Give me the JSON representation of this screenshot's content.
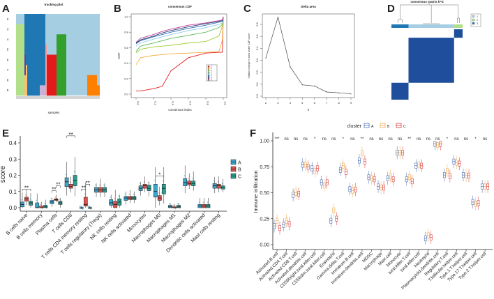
{
  "panel_labels": [
    "A",
    "B",
    "C",
    "D",
    "E",
    "F"
  ],
  "chart_data": [
    {
      "panel": "A",
      "type": "heatmap",
      "title": "tracking plot",
      "xlabel": "samples",
      "ylabel": "",
      "rows": [
        "2",
        "3",
        "4",
        "5",
        "6",
        "7",
        "8",
        "9"
      ],
      "n_samples": 60,
      "background_color": "#a6cee3",
      "segments": [
        {
          "from": 0,
          "to": 6,
          "rows": [
            "3",
            "4",
            "5",
            "6",
            "7",
            "8",
            "9"
          ],
          "color": "#b2df8a"
        },
        {
          "from": 6,
          "to": 21,
          "rows": [
            "2",
            "3",
            "4",
            "5",
            "6",
            "7",
            "8"
          ],
          "color": "#1f78b4"
        },
        {
          "from": 8,
          "to": 17,
          "rows": [
            "9"
          ],
          "color": "#1f78b4"
        },
        {
          "from": 17,
          "to": 21,
          "rows": [
            "9"
          ],
          "color": "#cab2d6"
        },
        {
          "from": 6,
          "to": 8,
          "rows": [
            "7",
            "8",
            "9"
          ],
          "color": "#fdbf6f"
        },
        {
          "from": 6,
          "to": 7,
          "rows": [
            "6",
            "7"
          ],
          "color": "#6a3d9a"
        },
        {
          "from": 21,
          "to": 22,
          "rows": [
            "5",
            "6",
            "7",
            "8",
            "9"
          ],
          "color": "#fb9a99"
        },
        {
          "from": 22,
          "to": 29,
          "rows": [
            "6",
            "7",
            "8",
            "9"
          ],
          "color": "#e31a1c"
        },
        {
          "from": 29,
          "to": 36,
          "rows": [
            "4",
            "5",
            "6",
            "7",
            "8",
            "9"
          ],
          "color": "#33a02c"
        },
        {
          "from": 51,
          "to": 58,
          "rows": [
            "8",
            "9"
          ],
          "color": "#ff7f00"
        },
        {
          "from": 58,
          "to": 60,
          "rows": [
            "9"
          ],
          "color": "#ff7f00"
        }
      ]
    },
    {
      "panel": "B",
      "type": "line",
      "title": "consensus CDF",
      "xlabel": "consensus index",
      "ylabel": "CDF",
      "xlim": [
        0,
        1
      ],
      "ylim": [
        0,
        1
      ],
      "xticks": [
        "0.0",
        "0.2",
        "0.4",
        "0.6",
        "0.8",
        "1.0"
      ],
      "yticks": [
        "0.0",
        "0.2",
        "0.4",
        "0.6",
        "0.8",
        "1.0"
      ],
      "legend_position": "bottom-right",
      "x": [
        0,
        0.05,
        0.2,
        0.3,
        0.4,
        0.6,
        0.8,
        0.95,
        0.99,
        1.0
      ],
      "series": [
        {
          "name": "2",
          "color": "#e41a1c",
          "values": [
            0.04,
            0.04,
            0.07,
            0.1,
            0.3,
            0.47,
            0.53,
            0.54,
            0.54,
            1.0
          ]
        },
        {
          "name": "3",
          "color": "#f5b041",
          "values": [
            0.38,
            0.47,
            0.5,
            0.51,
            0.52,
            0.53,
            0.54,
            0.55,
            0.7,
            1.0
          ]
        },
        {
          "name": "4",
          "color": "#9acd32",
          "values": [
            0.53,
            0.58,
            0.61,
            0.62,
            0.63,
            0.66,
            0.68,
            0.75,
            0.88,
            1.0
          ]
        },
        {
          "name": "5",
          "color": "#5cb85c",
          "values": [
            0.55,
            0.62,
            0.66,
            0.69,
            0.72,
            0.76,
            0.8,
            0.86,
            0.9,
            1.0
          ]
        },
        {
          "name": "6",
          "color": "#8ecae6",
          "values": [
            0.62,
            0.66,
            0.71,
            0.74,
            0.77,
            0.82,
            0.86,
            0.9,
            0.92,
            1.0
          ]
        },
        {
          "name": "7",
          "color": "#2f6db5",
          "values": [
            0.65,
            0.69,
            0.74,
            0.77,
            0.8,
            0.85,
            0.89,
            0.93,
            0.94,
            1.0
          ]
        },
        {
          "name": "8",
          "color": "#2c3e7a",
          "values": [
            0.66,
            0.7,
            0.75,
            0.79,
            0.82,
            0.87,
            0.91,
            0.94,
            0.95,
            1.0
          ]
        },
        {
          "name": "9",
          "color": "#c0408f",
          "values": [
            0.67,
            0.72,
            0.77,
            0.81,
            0.84,
            0.89,
            0.92,
            0.95,
            0.96,
            1.0
          ]
        }
      ]
    },
    {
      "panel": "C",
      "type": "line",
      "title": "Delta area",
      "xlabel": "k",
      "ylabel": "relative change in area under CDF curve",
      "xlim": [
        2,
        9
      ],
      "ylim": [
        0,
        0.6
      ],
      "xticks": [
        "2",
        "3",
        "4",
        "5",
        "6",
        "7",
        "8",
        "9"
      ],
      "yticks": [
        "0.0",
        "0.1",
        "0.2",
        "0.3",
        "0.4",
        "0.5",
        "0.6"
      ],
      "x": [
        2,
        3,
        4,
        5,
        6,
        7,
        8,
        9
      ],
      "values": [
        0.32,
        0.66,
        0.245,
        0.095,
        0.085,
        0.035,
        0.028,
        0.02
      ]
    },
    {
      "panel": "D",
      "type": "heatmap",
      "title": "consensus matrix k=3",
      "legend": [
        {
          "name": "1",
          "color": "#a6cee3"
        },
        {
          "name": "2",
          "color": "#b2df8a"
        },
        {
          "name": "3",
          "color": "#1f78b4"
        }
      ],
      "block_color": "#1f4e9c",
      "cluster_order": [
        {
          "cluster": "3",
          "fraction": 0.24
        },
        {
          "cluster": "1",
          "fraction": 0.64
        },
        {
          "cluster": "2",
          "fraction": 0.12
        }
      ]
    },
    {
      "panel": "E",
      "type": "box",
      "ylabel": "score",
      "ylim": [
        0,
        0.45
      ],
      "yticks": [
        "0.0",
        "0.1",
        "0.2",
        "0.3",
        "0.4"
      ],
      "legend_position": "right",
      "groups": [
        {
          "name": "A",
          "color": "#3aa6c9"
        },
        {
          "name": "B",
          "color": "#d9534f"
        },
        {
          "name": "C",
          "color": "#2a9d8f"
        }
      ],
      "categories": [
        {
          "label": "B cells naive",
          "sig": [
            "**"
          ],
          "q1q2q3": [
            [
              0.005,
              0.02,
              0.035
            ],
            [
              0.04,
              0.055,
              0.065
            ],
            [
              0.015,
              0.03,
              0.04
            ]
          ],
          "max": 0.11
        },
        {
          "label": "B cells memory",
          "sig": [],
          "q1q2q3": [
            [
              0,
              0.0,
              0.03
            ],
            [
              0,
              0.0,
              0.01
            ],
            [
              0,
              0.005,
              0.015
            ]
          ],
          "max": 0.1
        },
        {
          "label": "Plasma cells",
          "sig": [
            "**",
            "**"
          ],
          "q1q2q3": [
            [
              0.025,
              0.035,
              0.045
            ],
            [
              0.045,
              0.05,
              0.055
            ],
            [
              0.02,
              0.03,
              0.04
            ]
          ],
          "max": 0.06
        },
        {
          "label": "T cells CD8",
          "sig": [
            "**"
          ],
          "q1q2q3": [
            [
              0.13,
              0.16,
              0.185
            ],
            [
              0.12,
              0.13,
              0.145
            ],
            [
              0.135,
              0.17,
              0.2
            ]
          ],
          "max": 0.35
        },
        {
          "label": "T cells CD4 memory resting",
          "sig": [
            "**",
            "**"
          ],
          "q1q2q3": [
            [
              0,
              0.0,
              0.0
            ],
            [
              0.01,
              0.02,
              0.065
            ],
            [
              0,
              0.0,
              0.0
            ]
          ],
          "max": 0.185
        },
        {
          "label": "T cells regulatory (Tregs)",
          "sig": [],
          "q1q2q3": [
            [
              0.095,
              0.11,
              0.125
            ],
            [
              0.095,
              0.11,
              0.125
            ],
            [
              0.095,
              0.11,
              0.125
            ]
          ],
          "max": 0.15
        },
        {
          "label": "NK cells resting",
          "sig": [],
          "q1q2q3": [
            [
              0.015,
              0.03,
              0.05
            ],
            [
              0,
              0.02,
              0.04
            ],
            [
              0.015,
              0.035,
              0.055
            ]
          ],
          "max": 0.08
        },
        {
          "label": "NK cells activated",
          "sig": [],
          "q1q2q3": [
            [
              0.045,
              0.06,
              0.07
            ],
            [
              0.05,
              0.06,
              0.07
            ],
            [
              0.05,
              0.06,
              0.07
            ]
          ],
          "max": 0.1
        },
        {
          "label": "Monocytes",
          "sig": [],
          "q1q2q3": [
            [
              0.105,
              0.12,
              0.135
            ],
            [
              0.12,
              0.135,
              0.145
            ],
            [
              0.105,
              0.12,
              0.14
            ]
          ],
          "max": 0.16
        },
        {
          "label": "Macrophages M0",
          "sig": [
            "*"
          ],
          "q1q2q3": [
            [
              0.065,
              0.1,
              0.145
            ],
            [
              0.045,
              0.06,
              0.075
            ],
            [
              0.085,
              0.12,
              0.145
            ]
          ],
          "max": 0.25
        },
        {
          "label": "Macrophages M1",
          "sig": [],
          "q1q2q3": [
            [
              0,
              0.005,
              0.015
            ],
            [
              0,
              0.0,
              0.005
            ],
            [
              0,
              0.005,
              0.015
            ]
          ],
          "max": 0.03
        },
        {
          "label": "Macrophages M2",
          "sig": [],
          "q1q2q3": [
            [
              0.135,
              0.155,
              0.18
            ],
            [
              0.14,
              0.15,
              0.165
            ],
            [
              0.135,
              0.15,
              0.165
            ]
          ],
          "max": 0.26
        },
        {
          "label": "Dendritic cells activated",
          "sig": [],
          "q1q2q3": [
            [
              0,
              0.01,
              0.02
            ],
            [
              0,
              0.01,
              0.02
            ],
            [
              0,
              0.01,
              0.02
            ]
          ],
          "max": 0.06
        },
        {
          "label": "Mast cells resting",
          "sig": [],
          "q1q2q3": [
            [
              0.12,
              0.135,
              0.15
            ],
            [
              0.12,
              0.135,
              0.145
            ],
            [
              0.115,
              0.125,
              0.135
            ]
          ],
          "max": 0.19
        }
      ]
    },
    {
      "panel": "F",
      "type": "box",
      "ylabel": "Immune infiltration",
      "ylim": [
        0,
        1.05
      ],
      "yticks": [
        "0.00",
        "0.25",
        "0.50",
        "0.75",
        "1.00"
      ],
      "legend_title": "cluster",
      "legend_position": "top",
      "groups": [
        {
          "name": "A",
          "color": "#4a6fb5"
        },
        {
          "name": "B",
          "color": "#f0a64a"
        },
        {
          "name": "C",
          "color": "#d93b3b"
        }
      ],
      "categories": [
        {
          "label": "Activated.B.cell",
          "sig": "***",
          "medians": [
            0.18,
            0.23,
            0.16
          ]
        },
        {
          "label": "Activated.CD4.T.cell",
          "sig": "ns",
          "medians": [
            0.19,
            0.23,
            0.2
          ]
        },
        {
          "label": "Activated.CD8.T.cell",
          "sig": "ns",
          "medians": [
            0.48,
            0.5,
            0.49
          ]
        },
        {
          "label": "Activated.dendritic.cell",
          "sig": "ns",
          "medians": [
            0.77,
            0.77,
            0.75
          ]
        },
        {
          "label": "CD56bright.tural.killer.cell",
          "sig": "*",
          "medians": [
            0.735,
            0.71,
            0.735
          ]
        },
        {
          "label": "CD56dim.tural.killer.cell",
          "sig": "ns",
          "medians": [
            0.6,
            0.57,
            0.6
          ]
        },
        {
          "label": "Eosinophil",
          "sig": "ns",
          "medians": [
            0.23,
            0.33,
            0.25
          ]
        },
        {
          "label": "Gamma.delta.T.cell",
          "sig": "*",
          "medians": [
            0.72,
            0.76,
            0.7
          ]
        },
        {
          "label": "Immature.B.cell",
          "sig": "ns",
          "medians": [
            0.535,
            0.52,
            0.53
          ]
        },
        {
          "label": "Immature.dendritic.cell",
          "sig": "**",
          "medians": [
            0.81,
            0.88,
            0.8
          ]
        },
        {
          "label": "MDSC",
          "sig": "ns",
          "medians": [
            0.65,
            0.64,
            0.63
          ]
        },
        {
          "label": "Macrophage",
          "sig": "ns",
          "medians": [
            0.56,
            0.55,
            0.55
          ]
        },
        {
          "label": "Mast.cell",
          "sig": "ns",
          "medians": [
            0.64,
            0.66,
            0.63
          ]
        },
        {
          "label": "Monocyte",
          "sig": "ns",
          "medians": [
            0.885,
            0.885,
            0.885
          ]
        },
        {
          "label": "tural.killer.T.cell",
          "sig": "**",
          "medians": [
            0.63,
            0.65,
            0.61
          ]
        },
        {
          "label": "tural.killer.cell",
          "sig": "ns",
          "medians": [
            0.76,
            0.77,
            0.76
          ]
        },
        {
          "label": "Neutrophil",
          "sig": "ns",
          "medians": [
            0.06,
            0.09,
            0.07
          ]
        },
        {
          "label": "Plasmacytoid.dendritic.cell",
          "sig": "ns",
          "medians": [
            0.97,
            0.96,
            0.97
          ]
        },
        {
          "label": "Regulatory.T.cell",
          "sig": "*",
          "medians": [
            0.67,
            0.71,
            0.66
          ]
        },
        {
          "label": "T.follicular.helper.cell",
          "sig": "ns",
          "medians": [
            0.8,
            0.79,
            0.78
          ]
        },
        {
          "label": "Type.1.T.helper.cell",
          "sig": "ns",
          "medians": [
            0.67,
            0.665,
            0.665
          ]
        },
        {
          "label": "Type.17.T.helper.cell",
          "sig": "*",
          "medians": [
            0.41,
            0.39,
            0.4
          ]
        },
        {
          "label": "Type.2.T.helper.cell",
          "sig": "ns",
          "medians": [
            0.56,
            0.56,
            0.56
          ]
        }
      ]
    }
  ]
}
